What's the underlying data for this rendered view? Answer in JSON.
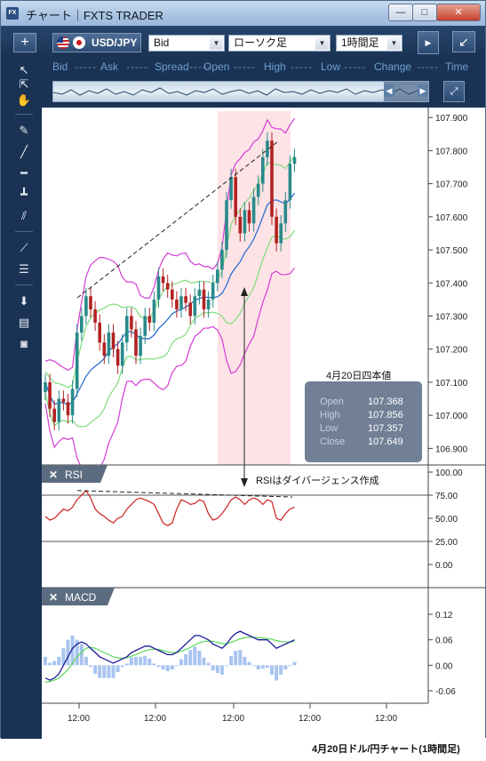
{
  "window": {
    "title": "チャート｜FXTS TRADER",
    "icon_label": "FX",
    "min_label": "—",
    "max_label": "□",
    "close_label": "✕"
  },
  "toolbar": {
    "add_label": "+",
    "pair": "USD/JPY",
    "price_type": "Bid",
    "chart_type": "ローソク足",
    "timeframe": "1時間足",
    "expand_label": "↙"
  },
  "quote": {
    "labels": [
      "Bid",
      "Ask",
      "Spread",
      "Open",
      "High",
      "Low",
      "Change",
      "Time"
    ],
    "placeholder": "-----"
  },
  "price_axis": {
    "ticks": [
      "107.900",
      "107.800",
      "107.700",
      "107.600",
      "107.500",
      "107.400",
      "107.300",
      "107.200",
      "107.100",
      "107.000",
      "106.900"
    ]
  },
  "rsi_panel": {
    "label": "RSI",
    "ticks": [
      "100.00",
      "75.00",
      "50.00",
      "25.00",
      "0.00"
    ]
  },
  "macd_panel": {
    "label": "MACD",
    "ticks": [
      "0.12",
      "0.06",
      "0.00",
      "-0.06"
    ]
  },
  "time_axis": {
    "ticks": [
      "12:00",
      "12:00",
      "12:00",
      "12:00",
      "12:00"
    ]
  },
  "ohlc_box": {
    "title": "4月20日四本値",
    "rows": [
      {
        "label": "Open",
        "value": "107.368"
      },
      {
        "label": "High",
        "value": "107.856"
      },
      {
        "label": "Low",
        "value": "107.357"
      },
      {
        "label": "Close",
        "value": "107.649"
      }
    ]
  },
  "annotation": {
    "divergence": "RSIはダイバージェンス作成"
  },
  "caption": "4月20日ドル/円チャート(1時間足)",
  "colors": {
    "frame": "#1a3354",
    "highlight": "#fde3e6",
    "candle_up": "#2a8a8a",
    "candle_down": "#b22222",
    "bb_outer": "#d43cd4",
    "bb_inner": "#7ddc7d",
    "ma": "#2f6fd0",
    "rsi": "#cc1e1e",
    "macd": "#1a1a9a",
    "signal": "#58d858",
    "histogram": "#a9c4f0"
  },
  "chart_data": [
    {
      "type": "candlestick",
      "pair": "USD/JPY",
      "timeframe": "1時間足",
      "ylim": [
        106.85,
        107.93
      ],
      "ohlc_apr20": {
        "open": 107.368,
        "high": 107.856,
        "low": 107.357,
        "close": 107.649
      },
      "closes": [
        107.1,
        107.02,
        106.98,
        107.05,
        107.04,
        107.0,
        107.08,
        107.25,
        107.3,
        107.36,
        107.32,
        107.28,
        107.22,
        107.18,
        107.25,
        107.2,
        107.15,
        107.22,
        107.3,
        107.26,
        107.18,
        107.24,
        107.3,
        107.28,
        107.35,
        107.42,
        107.4,
        107.38,
        107.35,
        107.32,
        107.36,
        107.34,
        107.3,
        107.36,
        107.38,
        107.32,
        107.35,
        107.4,
        107.44,
        107.5,
        107.65,
        107.72,
        107.6,
        107.55,
        107.62,
        107.58,
        107.66,
        107.7,
        107.78,
        107.83,
        107.6,
        107.52,
        107.58,
        107.65,
        107.76,
        107.78
      ]
    },
    {
      "type": "line",
      "name": "RSI",
      "ylim": [
        0,
        100
      ],
      "values": [
        52,
        48,
        50,
        55,
        60,
        58,
        62,
        70,
        75,
        80,
        72,
        60,
        55,
        52,
        48,
        45,
        50,
        52,
        60,
        65,
        70,
        72,
        70,
        68,
        65,
        55,
        45,
        42,
        45,
        60,
        70,
        68,
        65,
        66,
        70,
        68,
        55,
        48,
        50,
        55,
        62,
        70,
        73,
        70,
        65,
        70,
        72,
        70,
        65,
        70,
        68,
        50,
        48,
        55,
        60,
        62
      ]
    },
    {
      "type": "line",
      "name": "MACD",
      "ylim": [
        -0.06,
        0.12
      ],
      "macd": [
        -0.03,
        -0.035,
        -0.03,
        -0.02,
        0.0,
        0.02,
        0.04,
        0.05,
        0.055,
        0.05,
        0.04,
        0.03,
        0.02,
        0.015,
        0.01,
        0.005,
        0.01,
        0.015,
        0.02,
        0.03,
        0.035,
        0.04,
        0.045,
        0.045,
        0.04,
        0.035,
        0.03,
        0.025,
        0.025,
        0.03,
        0.04,
        0.05,
        0.06,
        0.07,
        0.07,
        0.065,
        0.06,
        0.05,
        0.045,
        0.04,
        0.05,
        0.065,
        0.075,
        0.08,
        0.075,
        0.07,
        0.065,
        0.06,
        0.06,
        0.06,
        0.05,
        0.04,
        0.045,
        0.05,
        0.055,
        0.06
      ],
      "signal": [
        -0.04,
        -0.038,
        -0.035,
        -0.03,
        -0.02,
        -0.01,
        0.005,
        0.02,
        0.03,
        0.04,
        0.042,
        0.04,
        0.035,
        0.03,
        0.025,
        0.02,
        0.018,
        0.017,
        0.018,
        0.021,
        0.025,
        0.03,
        0.034,
        0.037,
        0.038,
        0.037,
        0.035,
        0.032,
        0.03,
        0.03,
        0.033,
        0.037,
        0.042,
        0.048,
        0.053,
        0.056,
        0.057,
        0.056,
        0.054,
        0.051,
        0.051,
        0.054,
        0.058,
        0.062,
        0.065,
        0.066,
        0.066,
        0.065,
        0.064,
        0.063,
        0.061,
        0.058,
        0.056,
        0.055,
        0.055,
        0.056
      ]
    }
  ]
}
